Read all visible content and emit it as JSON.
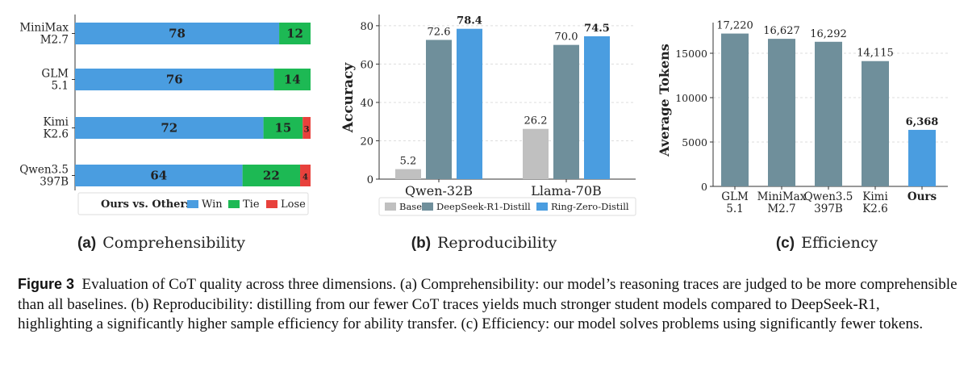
{
  "chart_data": [
    {
      "type": "bar",
      "orientation": "horizontal-stacked",
      "categories": [
        [
          "MiniMax",
          "M2.7"
        ],
        [
          "GLM",
          "5.1"
        ],
        [
          "Kimi",
          "K2.6"
        ],
        [
          "Qwen3.5",
          "397B"
        ]
      ],
      "series": [
        {
          "name": "Win",
          "values": [
            78,
            76,
            72,
            64
          ],
          "color": "#4a9de0"
        },
        {
          "name": "Tie",
          "values": [
            12,
            14,
            15,
            22
          ],
          "color": "#1db954"
        },
        {
          "name": "Lose",
          "values": [
            0,
            0,
            3,
            4
          ],
          "color": "#e8413c"
        }
      ],
      "legend_title": "Ours vs. Others:",
      "legend_position": "bottom",
      "xlim": [
        0,
        90
      ],
      "panel_label": "(a)",
      "panel_title": "Comprehensibility"
    },
    {
      "type": "bar",
      "categories": [
        "Qwen-32B",
        "Llama-70B"
      ],
      "series": [
        {
          "name": "Base",
          "values": [
            5.2,
            26.2
          ],
          "color": "#c0c0c0"
        },
        {
          "name": "DeepSeek-R1-Distill",
          "values": [
            72.6,
            70.0
          ],
          "color": "#6f8f9b"
        },
        {
          "name": "Ring-Zero-Distill",
          "values": [
            78.4,
            74.5
          ],
          "color": "#4a9de0"
        }
      ],
      "value_labels": [
        [
          "5.2",
          "72.6",
          "78.4"
        ],
        [
          "26.2",
          "70.0",
          "74.5"
        ]
      ],
      "ylabel": "Accuracy",
      "ylim": [
        0,
        85
      ],
      "yticks": [
        0,
        20,
        40,
        60,
        80
      ],
      "grid": true,
      "legend_position": "bottom",
      "panel_label": "(b)",
      "panel_title": "Reproducibility"
    },
    {
      "type": "bar",
      "categories": [
        [
          "GLM",
          "5.1"
        ],
        [
          "MiniMax",
          "M2.7"
        ],
        [
          "Qwen3.5",
          "397B"
        ],
        [
          "Kimi",
          "K2.6"
        ],
        [
          "Ours",
          ""
        ]
      ],
      "values": [
        17220,
        16627,
        16292,
        14115,
        6368
      ],
      "value_labels": [
        "17,220",
        "16,627",
        "16,292",
        "14,115",
        "6,368"
      ],
      "colors": [
        "#6f8f9b",
        "#6f8f9b",
        "#6f8f9b",
        "#6f8f9b",
        "#4a9de0"
      ],
      "ylabel": "Average Tokens",
      "ylim": [
        0,
        18000
      ],
      "yticks": [
        0,
        5000,
        10000,
        15000
      ],
      "grid": true,
      "panel_label": "(c)",
      "panel_title": "Efficiency"
    }
  ],
  "caption": {
    "label": "Figure 3",
    "text": "Evaluation of CoT quality across three dimensions. (a) Comprehensibility: our model’s reasoning traces are judged to be more comprehensible than all baselines. (b) Reproducibility: distilling from our fewer CoT traces yields much stronger student models compared to DeepSeek-R1, highlighting a significantly higher sample efficiency for ability transfer. (c) Efficiency: our model solves problems using significantly fewer tokens."
  }
}
